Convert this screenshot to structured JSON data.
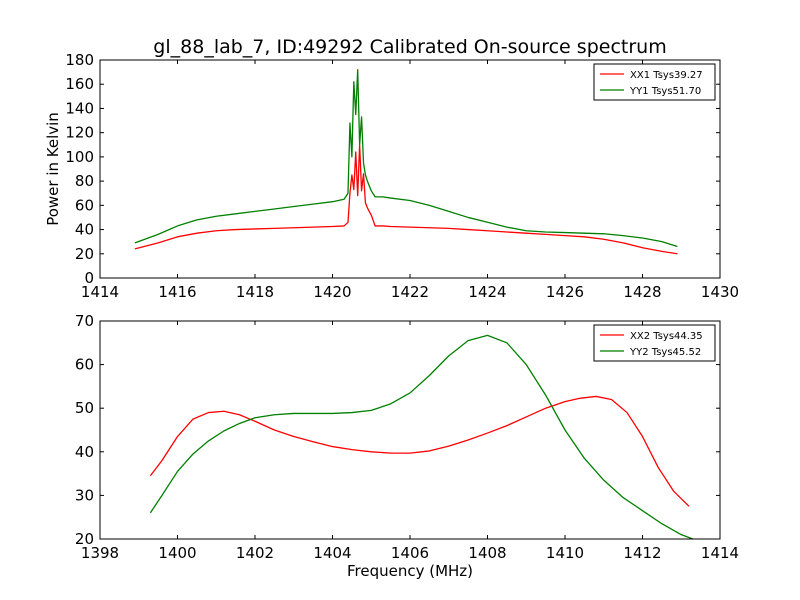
{
  "title": "gl_88_lab_7, ID:49292 Calibrated On-source spectrum",
  "chart_data": [
    {
      "type": "line",
      "ylabel": "Power in Kelvin",
      "xlabel": "",
      "xlim": [
        1414,
        1430
      ],
      "ylim": [
        0,
        180
      ],
      "xticks": [
        "1414",
        "1416",
        "1418",
        "1420",
        "1422",
        "1424",
        "1426",
        "1428",
        "1430"
      ],
      "yticks": [
        "0",
        "20",
        "40",
        "60",
        "80",
        "100",
        "120",
        "140",
        "160",
        "180"
      ],
      "legend_position": "top-right",
      "grid": false,
      "series": [
        {
          "name": "XX1 Tsys39.27",
          "color": "#ff0000",
          "x": [
            1414.9,
            1415.5,
            1416.0,
            1416.5,
            1417.0,
            1417.5,
            1418.0,
            1418.5,
            1419.0,
            1419.5,
            1420.0,
            1420.3,
            1420.4,
            1420.45,
            1420.5,
            1420.55,
            1420.6,
            1420.65,
            1420.7,
            1420.75,
            1420.8,
            1420.85,
            1420.9,
            1420.95,
            1421.0,
            1421.1,
            1421.3,
            1421.5,
            1422.0,
            1422.5,
            1423.0,
            1423.5,
            1424.0,
            1424.5,
            1425.0,
            1425.5,
            1426.0,
            1426.5,
            1427.0,
            1427.5,
            1428.0,
            1428.5,
            1428.9
          ],
          "y": [
            24,
            29,
            34,
            37,
            39,
            40,
            40.5,
            41,
            41.5,
            42,
            42.5,
            43,
            46,
            70,
            85,
            73,
            104,
            68,
            110,
            72,
            86,
            62,
            58,
            55,
            52,
            43,
            43,
            42.5,
            42,
            41.5,
            41,
            40,
            39,
            38,
            37,
            36,
            35,
            34,
            32,
            29,
            25,
            22,
            20
          ]
        },
        {
          "name": "YY1 Tsys51.70",
          "color": "#008000",
          "x": [
            1414.9,
            1415.5,
            1416.0,
            1416.5,
            1417.0,
            1417.5,
            1418.0,
            1418.5,
            1419.0,
            1419.5,
            1420.0,
            1420.3,
            1420.4,
            1420.45,
            1420.5,
            1420.55,
            1420.6,
            1420.65,
            1420.7,
            1420.75,
            1420.8,
            1420.85,
            1420.9,
            1420.95,
            1421.0,
            1421.1,
            1421.3,
            1421.5,
            1422.0,
            1422.5,
            1423.0,
            1423.5,
            1424.0,
            1424.5,
            1425.0,
            1425.5,
            1426.0,
            1426.5,
            1427.0,
            1427.5,
            1428.0,
            1428.5,
            1428.9
          ],
          "y": [
            29,
            36,
            43,
            48,
            51,
            53,
            55,
            57,
            59,
            61,
            63,
            65,
            70,
            128,
            100,
            162,
            135,
            172,
            110,
            133,
            95,
            85,
            80,
            76,
            72,
            67,
            67,
            66,
            64,
            60,
            55,
            50,
            46,
            42,
            39,
            38,
            37.5,
            37,
            36.5,
            35,
            33,
            30,
            26
          ]
        }
      ]
    },
    {
      "type": "line",
      "xlabel": "Frequency (MHz)",
      "ylabel": "",
      "xlim": [
        1398,
        1414
      ],
      "ylim": [
        20,
        70
      ],
      "xticks": [
        "1398",
        "1400",
        "1402",
        "1404",
        "1406",
        "1408",
        "1410",
        "1412",
        "1414"
      ],
      "yticks": [
        "20",
        "30",
        "40",
        "50",
        "60",
        "70"
      ],
      "legend_position": "top-right",
      "grid": false,
      "series": [
        {
          "name": "XX2 Tsys44.35",
          "color": "#ff0000",
          "x": [
            1399.3,
            1399.6,
            1400.0,
            1400.4,
            1400.8,
            1401.2,
            1401.6,
            1402.0,
            1402.5,
            1403.0,
            1403.5,
            1404.0,
            1404.5,
            1405.0,
            1405.5,
            1406.0,
            1406.5,
            1407.0,
            1407.5,
            1408.0,
            1408.5,
            1409.0,
            1409.5,
            1410.0,
            1410.4,
            1410.8,
            1411.2,
            1411.6,
            1412.0,
            1412.4,
            1412.8,
            1413.2
          ],
          "y": [
            34.5,
            38,
            43.5,
            47.5,
            49,
            49.3,
            48.5,
            47,
            45,
            43.5,
            42.3,
            41.2,
            40.5,
            40,
            39.7,
            39.7,
            40.2,
            41.3,
            42.7,
            44.3,
            46,
            48,
            50,
            51.5,
            52.3,
            52.7,
            52,
            49,
            43.5,
            36.5,
            31,
            27.5
          ]
        },
        {
          "name": "YY2 Tsys45.52",
          "color": "#008000",
          "x": [
            1399.3,
            1399.6,
            1400.0,
            1400.4,
            1400.8,
            1401.2,
            1401.6,
            1402.0,
            1402.5,
            1403.0,
            1403.5,
            1404.0,
            1404.5,
            1405.0,
            1405.5,
            1406.0,
            1406.5,
            1407.0,
            1407.5,
            1408.0,
            1408.5,
            1409.0,
            1409.5,
            1410.0,
            1410.5,
            1411.0,
            1411.5,
            1412.0,
            1412.5,
            1413.0,
            1413.3
          ],
          "y": [
            26,
            30,
            35.5,
            39.5,
            42.5,
            44.8,
            46.5,
            47.8,
            48.5,
            48.8,
            48.8,
            48.8,
            49,
            49.5,
            51,
            53.5,
            57.5,
            62,
            65.5,
            66.7,
            65,
            60,
            53,
            45,
            38.5,
            33.5,
            29.5,
            26.5,
            23.5,
            21,
            20
          ]
        }
      ]
    }
  ]
}
